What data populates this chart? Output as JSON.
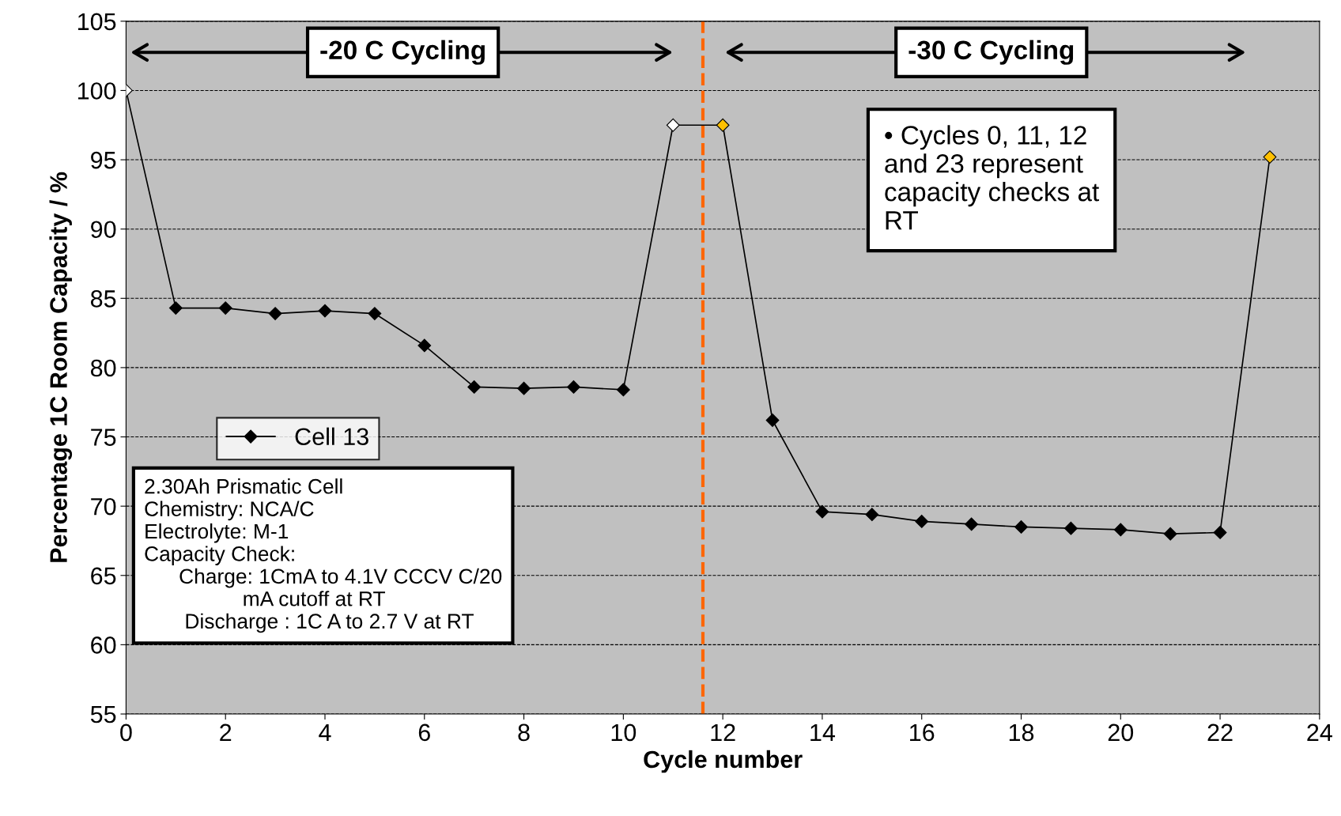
{
  "chart_data": {
    "type": "line",
    "xlabel": "Cycle number",
    "ylabel": "Percentage 1C Room Capacity / %",
    "x": [
      0,
      1,
      2,
      3,
      4,
      5,
      6,
      7,
      8,
      9,
      10,
      11,
      12,
      13,
      14,
      15,
      16,
      17,
      18,
      19,
      20,
      21,
      22,
      23
    ],
    "series": [
      {
        "name": "Cell 13",
        "color": "#000000",
        "values": [
          100,
          84.3,
          84.3,
          83.9,
          84.1,
          83.9,
          81.6,
          78.6,
          78.5,
          78.6,
          78.4,
          97.5,
          97.5,
          76.2,
          69.6,
          69.4,
          68.9,
          68.7,
          68.5,
          68.4,
          68.3,
          68.0,
          68.1,
          95.2
        ],
        "colors": [
          "#ffffff",
          "#000000",
          "#000000",
          "#000000",
          "#000000",
          "#000000",
          "#000000",
          "#000000",
          "#000000",
          "#000000",
          "#000000",
          "#ffffff",
          "#ffc000",
          "#000000",
          "#000000",
          "#000000",
          "#000000",
          "#000000",
          "#000000",
          "#000000",
          "#000000",
          "#000000",
          "#000000",
          "#ffc000"
        ]
      }
    ],
    "marker": "diamond",
    "line_style": "solid",
    "xlim": [
      0,
      24
    ],
    "xticks": [
      0,
      2,
      4,
      6,
      8,
      10,
      12,
      14,
      16,
      18,
      20,
      22,
      24
    ],
    "ylim": [
      55,
      105
    ],
    "yticks": [
      55,
      60,
      65,
      70,
      75,
      80,
      85,
      90,
      95,
      100,
      105
    ],
    "grid": "y",
    "legend": "left",
    "ref_lines": [
      {
        "axis": "x",
        "value": 11.6,
        "color": "#ff6600",
        "line_style": "dashed"
      }
    ],
    "annotations": [
      "-20 C Cycling",
      "-30 C Cycling",
      "• Cycles 0, 11, 12\nand 23 represent\ncapacity checks at\nRT",
      "2.30Ah Prismatic Cell\nChemistry: NCA/C\nElectrolyte: M-1\nCapacity Check:\n      Charge: 1CmA to 4.1V CCCV C/20\n                 mA cutoff at RT\n       Discharge : 1C A to 2.7 V at RT"
    ]
  }
}
